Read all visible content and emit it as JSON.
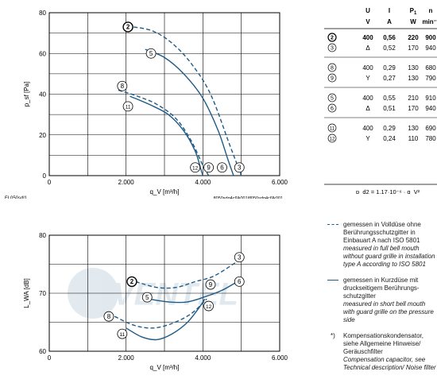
{
  "chart_data": [
    {
      "type": "line",
      "name": "pressure-chart",
      "ylabel": "p_sf [Pa]",
      "xlabel": "q_V [m³/h]",
      "xlim": [
        0,
        6000
      ],
      "ylim": [
        0,
        80
      ],
      "x_ticks": [
        "0",
        "2.000",
        "4.000",
        "6.000"
      ],
      "y_ticks": [
        "0",
        "20",
        "40",
        "60",
        "80"
      ],
      "grid": true,
      "footer_left": "FL050sdl1",
      "footer_right": "fl050sdq4c6lk001/fl050sdq4c6lk001",
      "series": [
        {
          "id": "2",
          "style": "dashed",
          "points": [
            [
              2200,
              73
            ],
            [
              2700,
              71
            ],
            [
              3200,
              65
            ],
            [
              3700,
              55
            ],
            [
              4200,
              40
            ],
            [
              4700,
              15
            ],
            [
              5000,
              0
            ]
          ]
        },
        {
          "id": "5",
          "style": "solid",
          "points": [
            [
              2500,
              62
            ],
            [
              3000,
              58
            ],
            [
              3500,
              50
            ],
            [
              4000,
              38
            ],
            [
              4400,
              22
            ],
            [
              4650,
              8
            ],
            [
              4800,
              0
            ]
          ]
        },
        {
          "id": "8",
          "style": "dashed",
          "points": [
            [
              1800,
              42
            ],
            [
              2300,
              39
            ],
            [
              2800,
              35
            ],
            [
              3300,
              28
            ],
            [
              3700,
              17
            ],
            [
              4000,
              5
            ],
            [
              4150,
              0
            ]
          ]
        },
        {
          "id": "11",
          "style": "solid",
          "points": [
            [
              2100,
              39
            ],
            [
              2600,
              35
            ],
            [
              3100,
              30
            ],
            [
              3500,
              22
            ],
            [
              3800,
              12
            ],
            [
              3950,
              3
            ],
            [
              4000,
              0
            ]
          ]
        }
      ],
      "markers": [
        {
          "label": "2",
          "x": 2050,
          "y": 73,
          "bold": true
        },
        {
          "label": "5",
          "x": 2650,
          "y": 60,
          "bold": false
        },
        {
          "label": "8",
          "x": 1900,
          "y": 44,
          "bold": false
        },
        {
          "label": "11",
          "x": 2050,
          "y": 34,
          "bold": false
        },
        {
          "label": "12",
          "x": 3800,
          "y": 4,
          "bold": false
        },
        {
          "label": "9",
          "x": 4150,
          "y": 4,
          "bold": false
        },
        {
          "label": "6",
          "x": 4500,
          "y": 4,
          "bold": false
        },
        {
          "label": "3",
          "x": 4950,
          "y": 4,
          "bold": false
        }
      ]
    },
    {
      "type": "line",
      "name": "sound-chart",
      "ylabel": "L_WA [dB]",
      "xlabel": "q_V [m³/h]",
      "xlim": [
        0,
        6000
      ],
      "ylim": [
        60,
        80
      ],
      "x_ticks": [
        "0",
        "2.000",
        "4.000",
        "6.000"
      ],
      "y_ticks": [
        "60",
        "70",
        "80"
      ],
      "grid": true,
      "watermark": "VENTEL",
      "series": [
        {
          "id": "2",
          "style": "dashed",
          "points": [
            [
              2250,
              72
            ],
            [
              2800,
              71
            ],
            [
              3300,
              71
            ],
            [
              3800,
              72
            ],
            [
              4300,
              73
            ],
            [
              4900,
              75.5
            ]
          ]
        },
        {
          "id": "5",
          "style": "solid",
          "points": [
            [
              2600,
              69
            ],
            [
              3100,
              68.5
            ],
            [
              3600,
              68.5
            ],
            [
              4100,
              69.5
            ],
            [
              4500,
              70.5
            ],
            [
              4900,
              72
            ]
          ]
        },
        {
          "id": "8",
          "style": "dashed",
          "points": [
            [
              1700,
              66
            ],
            [
              2200,
              64.5
            ],
            [
              2700,
              64
            ],
            [
              3200,
              64.8
            ],
            [
              3700,
              66.5
            ],
            [
              4100,
              69
            ]
          ]
        },
        {
          "id": "11",
          "style": "solid",
          "points": [
            [
              2000,
              64
            ],
            [
              2400,
              62.5
            ],
            [
              2800,
              62
            ],
            [
              3200,
              63
            ],
            [
              3600,
              65
            ],
            [
              3900,
              67.5
            ],
            [
              4050,
              69
            ]
          ]
        }
      ],
      "markers": [
        {
          "label": "2",
          "x": 2150,
          "y": 72,
          "bold": true
        },
        {
          "label": "5",
          "x": 2550,
          "y": 69.3,
          "bold": false
        },
        {
          "label": "8",
          "x": 1550,
          "y": 66,
          "bold": false
        },
        {
          "label": "11",
          "x": 1900,
          "y": 63,
          "bold": false
        },
        {
          "label": "9",
          "x": 4200,
          "y": 71.5,
          "bold": false
        },
        {
          "label": "12",
          "x": 4150,
          "y": 67.8,
          "bold": false
        },
        {
          "label": "6",
          "x": 4950,
          "y": 72,
          "bold": false
        },
        {
          "label": "3",
          "x": 4950,
          "y": 76.2,
          "bold": false
        }
      ]
    }
  ],
  "table": {
    "headers": [
      "U",
      "I",
      "P1",
      "n"
    ],
    "units": [
      "V",
      "A",
      "W",
      "min⁻¹"
    ],
    "groups": [
      [
        {
          "id": "2",
          "u": "400",
          "i": "0,56",
          "p": "220",
          "n": "900",
          "bold": true
        },
        {
          "id": "3",
          "u": "Δ",
          "i": "0,52",
          "p": "170",
          "n": "940",
          "bold": false
        }
      ],
      [
        {
          "id": "8",
          "u": "400",
          "i": "0,29",
          "p": "130",
          "n": "680",
          "bold": false
        },
        {
          "id": "9",
          "u": "Y",
          "i": "0,27",
          "p": "130",
          "n": "790",
          "bold": false
        }
      ],
      [
        {
          "id": "5",
          "u": "400",
          "i": "0,55",
          "p": "210",
          "n": "910",
          "bold": false
        },
        {
          "id": "6",
          "u": "Δ",
          "i": "0,51",
          "p": "170",
          "n": "940",
          "bold": false
        }
      ],
      [
        {
          "id": "11",
          "u": "400",
          "i": "0,29",
          "p": "130",
          "n": "690",
          "bold": false
        },
        {
          "id": "12",
          "u": "Y",
          "i": "0,24",
          "p": "110",
          "n": "780",
          "bold": false
        }
      ]
    ],
    "formula": "p_d2 = 1,17·10⁻⁶ · q_V²"
  },
  "legend": {
    "dashed_de": "gemessen in Volldüse ohne Berührungsschutzgitter in Einbauart A nach ISO 5801",
    "dashed_en": "measured in full bell mouth without guard grille in installation type A according to ISO 5801",
    "solid_de": "gemessen in Kurzdüse mit druckseitigem Berührungs-schutzgitter",
    "solid_en": "measured in short bell mouth with guard grille on the pressure side",
    "note_mark": "*)",
    "note_de": "Kompensationskondensator, siehe Allgemeine Hinweise/ Geräuschfilter",
    "note_en": "Compensation capacitor, see Technical description/ Noise filter"
  },
  "colors": {
    "curve": "#1e5b86",
    "grid": "#000000",
    "marker_fill": "#ffffff"
  }
}
